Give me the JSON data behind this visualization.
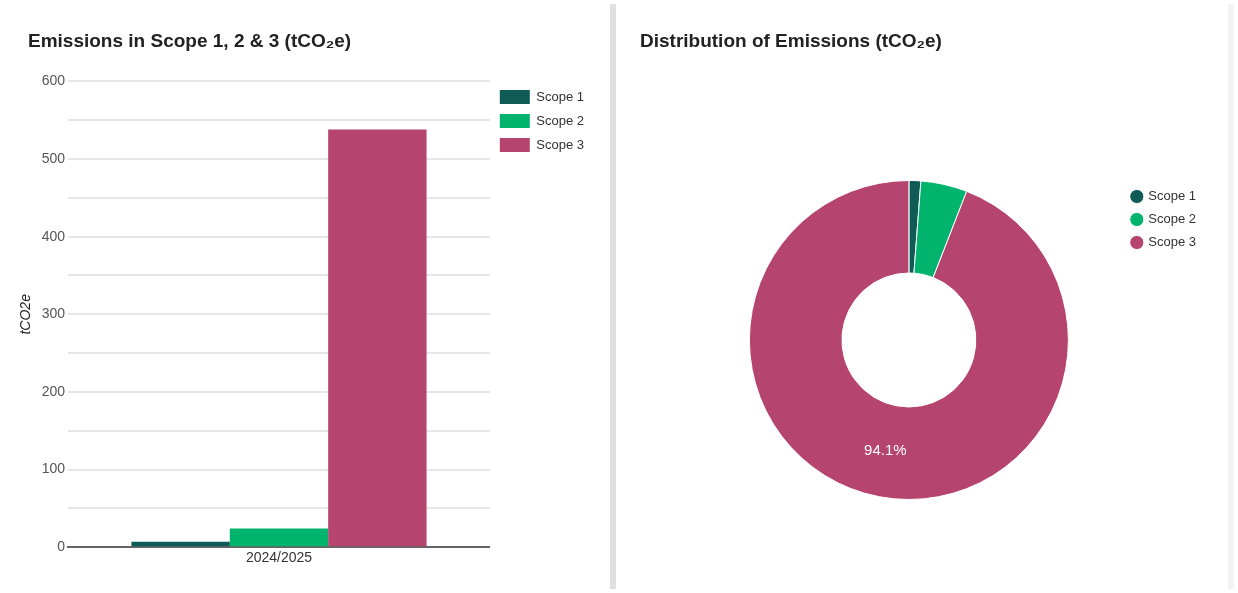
{
  "chart_data": [
    {
      "type": "bar",
      "title": "Emissions in Scope 1, 2 & 3 (tCO₂e)",
      "ylabel": "tCO2e",
      "categories": [
        "2024/2025"
      ],
      "series": [
        {
          "name": "Scope 1",
          "color": "#0f5c57",
          "values": [
            7
          ]
        },
        {
          "name": "Scope 2",
          "color": "#00b46e",
          "values": [
            24
          ]
        },
        {
          "name": "Scope 3",
          "color": "#b5446e",
          "values": [
            538
          ]
        }
      ],
      "ylim": [
        0,
        600
      ],
      "yticks": [
        0,
        {
          "value": 50,
          "label": null
        },
        100,
        {
          "value": 150,
          "label": null
        },
        200,
        {
          "value": 250,
          "label": null
        },
        300,
        {
          "value": 350,
          "label": null
        },
        400,
        {
          "value": 450,
          "label": null
        },
        500,
        {
          "value": 550,
          "label": null
        },
        600
      ],
      "grid": "y",
      "legend": "top right"
    },
    {
      "type": "donut",
      "title": "Distribution of Emissions (tCO₂e)",
      "categories": [
        "Scope 1",
        "Scope 2",
        "Scope 3"
      ],
      "values": [
        1.2,
        4.7,
        94.1
      ],
      "colors": [
        "#0f5c57",
        "#00b46e",
        "#b5446e"
      ],
      "value_labels": [
        null,
        null,
        "94.1%"
      ],
      "legend": "top right"
    }
  ]
}
